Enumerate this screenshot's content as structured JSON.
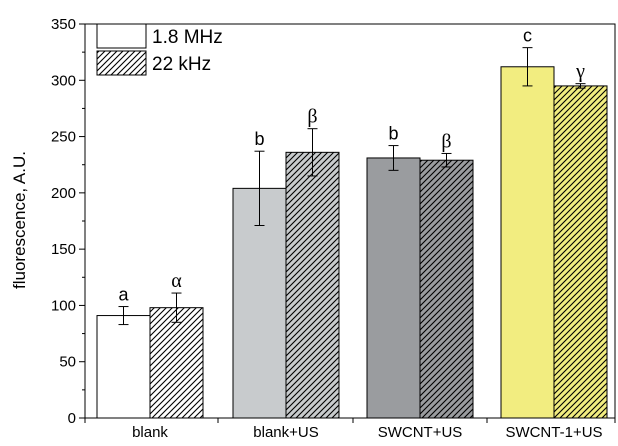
{
  "chart_data": {
    "type": "bar",
    "title": "",
    "xlabel": "",
    "ylabel": "fluorescence, A.U.",
    "ylim": [
      0,
      350
    ],
    "yticks": [
      0,
      50,
      100,
      150,
      200,
      250,
      300,
      350
    ],
    "grid": false,
    "legend": "top-left",
    "categories": [
      "blank",
      "blank+US",
      "SWCNT+US",
      "SWCNT-1+US"
    ],
    "category_colors": [
      "#ffffff",
      "#c8cbcd",
      "#9a9c9f",
      "#f2ed80"
    ],
    "series": [
      {
        "name": "1.8 MHz",
        "pattern": "solid",
        "values": [
          91,
          204,
          231,
          312
        ],
        "errors": [
          8,
          33,
          11,
          17
        ],
        "labels": [
          "a",
          "b",
          "b",
          "c"
        ]
      },
      {
        "name": "22 kHz",
        "pattern": "hatched",
        "values": [
          98,
          236,
          229,
          295
        ],
        "errors": [
          13,
          21,
          6,
          2
        ],
        "labels": [
          "α",
          "β",
          "β",
          "γ"
        ]
      }
    ]
  }
}
